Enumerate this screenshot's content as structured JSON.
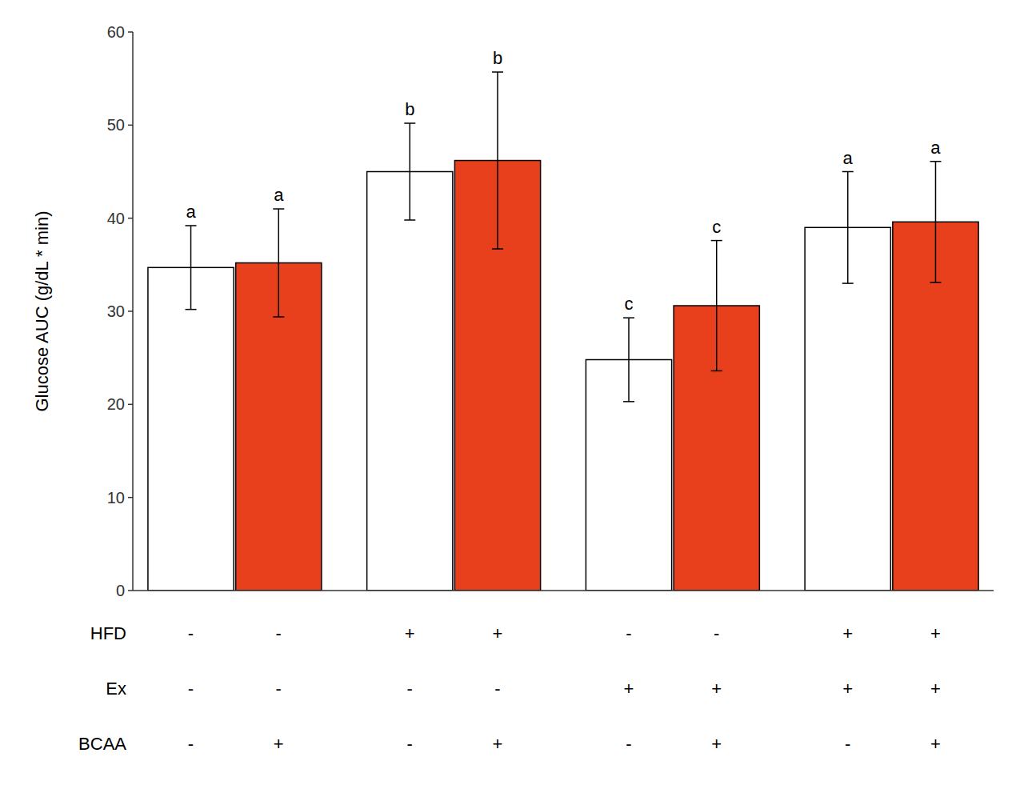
{
  "chart_data": {
    "type": "bar",
    "ylabel": "Glucose AUC (g/dL * min)",
    "categories": [
      null,
      null,
      null,
      null,
      null,
      null,
      null,
      null
    ],
    "values": [
      34.7,
      35.2,
      45.0,
      46.2,
      24.8,
      30.6,
      39.0,
      39.6
    ],
    "errors": [
      4.5,
      5.8,
      5.2,
      9.5,
      4.5,
      7.0,
      6.0,
      6.5
    ],
    "letters": [
      "a",
      "a",
      "b",
      "b",
      "c",
      "c",
      "a",
      "a"
    ],
    "colors": [
      "white",
      "#e8401c",
      "white",
      "#e8401c",
      "white",
      "#e8401c",
      "white",
      "#e8401c"
    ],
    "table": {
      "row_labels": [
        "HFD",
        "Ex",
        "BCAA"
      ],
      "rows": [
        [
          "-",
          "-",
          "+",
          "+",
          "-",
          "-",
          "+",
          "+"
        ],
        [
          "-",
          "-",
          "-",
          "-",
          "+",
          "+",
          "+",
          "+"
        ],
        [
          "-",
          "+",
          "-",
          "+",
          "-",
          "+",
          "-",
          "+"
        ]
      ]
    },
    "ylim": [
      0,
      60
    ],
    "yticks": [
      0,
      10,
      20,
      30,
      40,
      50,
      60
    ],
    "grid": false,
    "tick_labels": "y"
  }
}
